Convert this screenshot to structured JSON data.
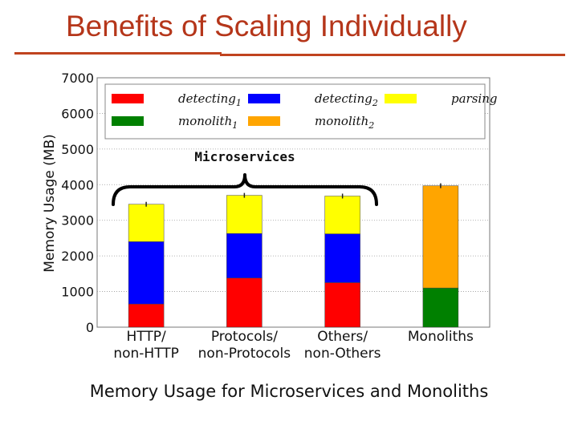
{
  "slide": {
    "title": "Benefits of Scaling Individually",
    "caption": "Memory Usage for Microservices and Monoliths"
  },
  "colors": {
    "title": "#b5361a",
    "rule": "#c0431f",
    "detecting1": "#ff0000",
    "detecting2": "#0000ff",
    "parsing": "#ffff00",
    "monolith1": "#008000",
    "monolith2": "#ffa500"
  },
  "chart_data": {
    "type": "bar",
    "stacked": true,
    "ylabel": "Memory Usage (MB)",
    "ylim": [
      0,
      7000
    ],
    "yticks": [
      0,
      1000,
      2000,
      3000,
      4000,
      5000,
      6000,
      7000
    ],
    "grid": true,
    "legend_position": "top",
    "categories": [
      "HTTP/\nnon-HTTP",
      "Protocols/\nnon-Protocols",
      "Others/\nnon-Others",
      "Monoliths"
    ],
    "series": [
      {
        "name": "detecting",
        "sub": "1",
        "key": "detecting1",
        "values": [
          650,
          1380,
          1250,
          0
        ]
      },
      {
        "name": "detecting",
        "sub": "2",
        "key": "detecting2",
        "values": [
          1750,
          1250,
          1370,
          0
        ]
      },
      {
        "name": "parsing",
        "sub": "",
        "key": "parsing",
        "values": [
          1050,
          1070,
          1060,
          0
        ]
      },
      {
        "name": "monolith",
        "sub": "1",
        "key": "monolith1",
        "values": [
          0,
          0,
          0,
          1100
        ]
      },
      {
        "name": "monolith",
        "sub": "2",
        "key": "monolith2",
        "values": [
          0,
          0,
          0,
          2870
        ]
      }
    ],
    "annotation": "Microservices"
  }
}
